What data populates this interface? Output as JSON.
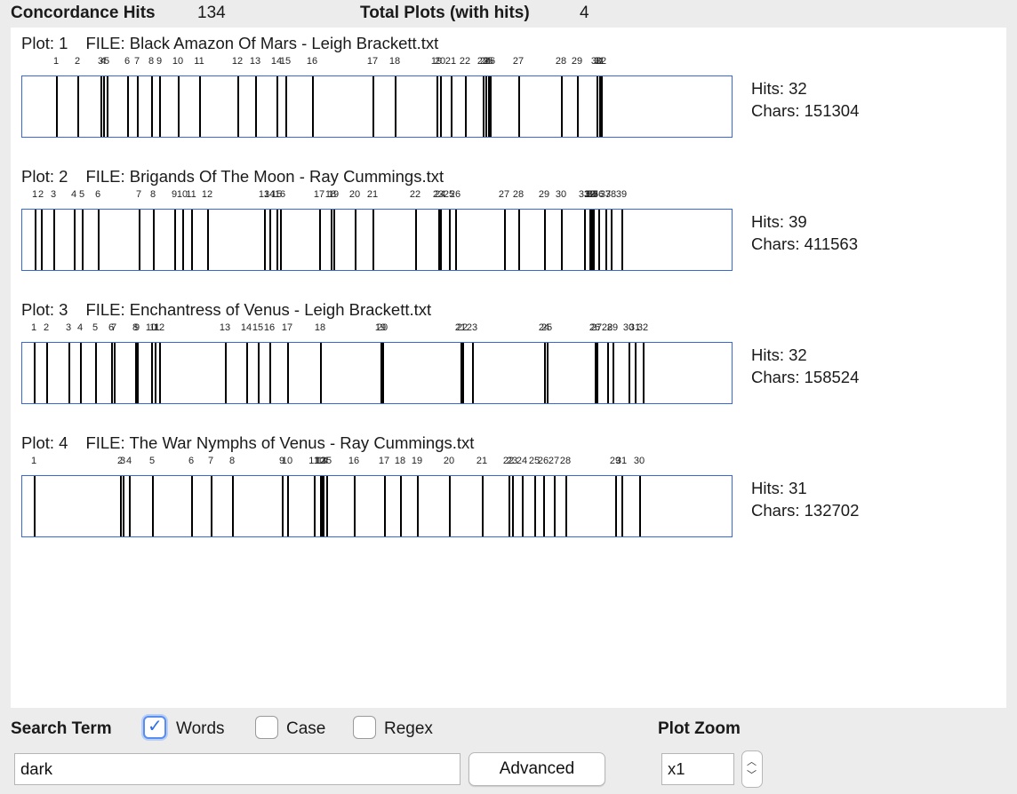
{
  "stats": {
    "hits_label": "Concordance Hits",
    "hits_value": "134",
    "plots_label": "Total Plots (with hits)",
    "plots_value": "4"
  },
  "plots": [
    {
      "plot_label": "Plot: 1",
      "file_label": "FILE: Black Amazon Of Mars - Leigh Brackett.txt",
      "hits_text": "Hits: 32",
      "chars_text": "Chars: 151304",
      "ticks": [
        "1",
        "2",
        "3",
        "4",
        "5",
        "6",
        "7",
        "8",
        "9",
        "10",
        "11",
        "12",
        "13",
        "14",
        "15",
        "16",
        "17",
        "18",
        "19",
        "20",
        "21",
        "22",
        "23",
        "24",
        "25",
        "26",
        "27",
        "28",
        "29",
        "30",
        "31",
        "32"
      ],
      "hit_positions": [
        0.048,
        0.078,
        0.11,
        0.114,
        0.119,
        0.148,
        0.161,
        0.181,
        0.192,
        0.219,
        0.249,
        0.303,
        0.327,
        0.357,
        0.37,
        0.407,
        0.493,
        0.524,
        0.583,
        0.588,
        0.603,
        0.622,
        0.648,
        0.651,
        0.655,
        0.658,
        0.697,
        0.758,
        0.78,
        0.808,
        0.811,
        0.814
      ]
    },
    {
      "plot_label": "Plot: 2",
      "file_label": "FILE: Brigands Of The Moon - Ray Cummings.txt",
      "hits_text": "Hits: 39",
      "chars_text": "Chars: 411563",
      "ticks": [
        "1",
        "2",
        "3",
        "4",
        "5",
        "6",
        "7",
        "8",
        "9",
        "10",
        "11",
        "12",
        "13",
        "14",
        "15",
        "16",
        "17",
        "18",
        "19",
        "20",
        "21",
        "22",
        "23",
        "24",
        "25",
        "26",
        "27",
        "28",
        "29",
        "30",
        "31",
        "32",
        "33",
        "34",
        "35",
        "36",
        "37",
        "38",
        "39"
      ],
      "hit_positions": [
        0.018,
        0.026,
        0.044,
        0.073,
        0.084,
        0.106,
        0.164,
        0.184,
        0.214,
        0.225,
        0.237,
        0.26,
        0.34,
        0.348,
        0.358,
        0.362,
        0.417,
        0.434,
        0.438,
        0.468,
        0.493,
        0.552,
        0.585,
        0.588,
        0.6,
        0.609,
        0.678,
        0.698,
        0.734,
        0.757,
        0.79,
        0.797,
        0.799,
        0.801,
        0.803,
        0.81,
        0.82,
        0.828,
        0.843
      ]
    },
    {
      "plot_label": "Plot: 3",
      "file_label": "FILE: Enchantress of Venus - Leigh Brackett.txt",
      "hits_text": "Hits: 32",
      "chars_text": "Chars: 158524",
      "ticks": [
        "1",
        "2",
        "3",
        "4",
        "5",
        "6",
        "7",
        "8",
        "9",
        "10",
        "11",
        "12",
        "13",
        "14",
        "15",
        "16",
        "17",
        "18",
        "19",
        "20",
        "21",
        "22",
        "23",
        "24",
        "25",
        "26",
        "27",
        "28",
        "29",
        "30",
        "31",
        "32"
      ],
      "hit_positions": [
        0.016,
        0.034,
        0.065,
        0.081,
        0.103,
        0.125,
        0.129,
        0.159,
        0.161,
        0.181,
        0.186,
        0.193,
        0.285,
        0.315,
        0.331,
        0.347,
        0.373,
        0.419,
        0.504,
        0.506,
        0.616,
        0.619,
        0.632,
        0.734,
        0.738,
        0.805,
        0.808,
        0.822,
        0.83,
        0.852,
        0.861,
        0.873
      ]
    },
    {
      "plot_label": "Plot: 4",
      "file_label": "FILE: The War Nymphs of Venus - Ray Cummings.txt",
      "hits_text": "Hits: 31",
      "chars_text": "Chars: 132702",
      "ticks": [
        "1",
        "2",
        "3",
        "4",
        "5",
        "6",
        "7",
        "8",
        "9",
        "10",
        "11",
        "12",
        "13",
        "14",
        "15",
        "16",
        "17",
        "18",
        "19",
        "20",
        "21",
        "22",
        "23",
        "24",
        "25",
        "26",
        "27",
        "28",
        "29",
        "30",
        "31"
      ],
      "hit_positions": [
        0.016,
        0.138,
        0.141,
        0.15,
        0.183,
        0.238,
        0.265,
        0.295,
        0.365,
        0.373,
        0.41,
        0.419,
        0.42,
        0.422,
        0.427,
        0.466,
        0.509,
        0.531,
        0.555,
        0.6,
        0.646,
        0.684,
        0.689,
        0.702,
        0.72,
        0.733,
        0.747,
        0.764,
        0.834,
        0.868,
        0.842
      ]
    }
  ],
  "search": {
    "label": "Search Term",
    "words_label": "Words",
    "case_label": "Case",
    "regex_label": "Regex",
    "value": "dark",
    "advanced_label": "Advanced",
    "words_checked": true,
    "case_checked": false,
    "regex_checked": false
  },
  "zoom": {
    "label": "Plot Zoom",
    "value": "x1"
  },
  "colors": {
    "accent": "#3a67d6",
    "hit_line": "#000000"
  }
}
